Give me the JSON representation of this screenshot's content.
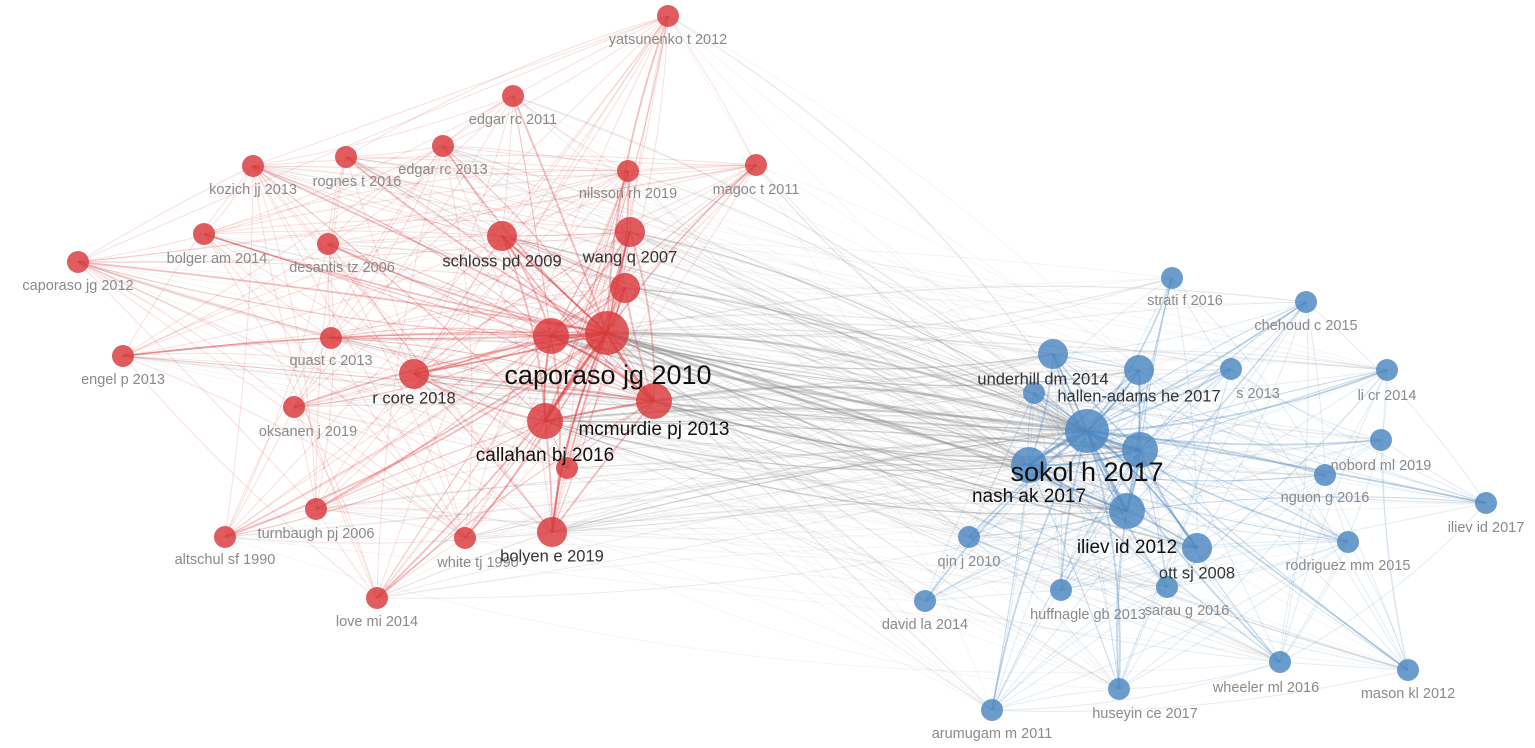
{
  "colors": {
    "red_cluster": "#d9383a",
    "blue_cluster": "#4a86c0",
    "cross_edge": "#8c8c8c",
    "label_minor": "#8a8a8a",
    "label_major": "#111111"
  },
  "nodes": [
    {
      "id": "yatsunenko",
      "label": "yatsunenko t 2012",
      "cluster": "red",
      "weight": 1
    },
    {
      "id": "edgar2011",
      "label": "edgar rc 2011",
      "cluster": "red",
      "weight": 1
    },
    {
      "id": "edgar2013",
      "label": "edgar rc 2013",
      "cluster": "red",
      "weight": 1
    },
    {
      "id": "kozich",
      "label": "kozich jj 2013",
      "cluster": "red",
      "weight": 1
    },
    {
      "id": "rognes",
      "label": "rognes t 2016",
      "cluster": "red",
      "weight": 1
    },
    {
      "id": "nilsson",
      "label": "nilsson rh 2019",
      "cluster": "red",
      "weight": 1
    },
    {
      "id": "magoc",
      "label": "magoc t 2011",
      "cluster": "red",
      "weight": 1
    },
    {
      "id": "bolger",
      "label": "bolger am 2014",
      "cluster": "red",
      "weight": 1
    },
    {
      "id": "desantis",
      "label": "desantis tz 2006",
      "cluster": "red",
      "weight": 1
    },
    {
      "id": "schloss",
      "label": "schloss pd 2009",
      "cluster": "red",
      "weight": 2
    },
    {
      "id": "wang",
      "label": "wang q 2007",
      "cluster": "red",
      "weight": 2
    },
    {
      "id": "caporaso2012",
      "label": "caporaso jg 2012",
      "cluster": "red",
      "weight": 1
    },
    {
      "id": "redhub",
      "label": "",
      "cluster": "red",
      "weight": 2
    },
    {
      "id": "caporaso2010",
      "label": "caporaso jg 2010",
      "cluster": "red",
      "weight": 4
    },
    {
      "id": "caporaso2010b",
      "label": "",
      "cluster": "red",
      "weight": 3
    },
    {
      "id": "quast",
      "label": "quast c 2013",
      "cluster": "red",
      "weight": 1
    },
    {
      "id": "engel",
      "label": "engel p 2013",
      "cluster": "red",
      "weight": 1
    },
    {
      "id": "rcore",
      "label": "r core 2018",
      "cluster": "red",
      "weight": 2
    },
    {
      "id": "mcmurdie",
      "label": "mcmurdie pj 2013",
      "cluster": "red",
      "weight": 3
    },
    {
      "id": "oksanen",
      "label": "oksanen j 2019",
      "cluster": "red",
      "weight": 1
    },
    {
      "id": "callahan",
      "label": "callahan bj 2016",
      "cluster": "red",
      "weight": 3
    },
    {
      "id": "redsmall",
      "label": "",
      "cluster": "red",
      "weight": 1
    },
    {
      "id": "turnbaugh",
      "label": "turnbaugh pj 2006",
      "cluster": "red",
      "weight": 1
    },
    {
      "id": "altschul",
      "label": "altschul sf 1990",
      "cluster": "red",
      "weight": 1
    },
    {
      "id": "white",
      "label": "white tj 1990",
      "cluster": "red",
      "weight": 1
    },
    {
      "id": "bolyen",
      "label": "bolyen e 2019",
      "cluster": "red",
      "weight": 2
    },
    {
      "id": "love",
      "label": "love mi 2014",
      "cluster": "red",
      "weight": 1
    },
    {
      "id": "strati",
      "label": "strati f 2016",
      "cluster": "blue",
      "weight": 1
    },
    {
      "id": "chehoud",
      "label": "chehoud c 2015",
      "cluster": "blue",
      "weight": 1
    },
    {
      "id": "underhill",
      "label": "underhill dm 2014",
      "cluster": "blue",
      "weight": 2
    },
    {
      "id": "hallen",
      "label": "hallen-adams he 2017",
      "cluster": "blue",
      "weight": 2
    },
    {
      "id": "bluex",
      "label": "",
      "cluster": "blue",
      "weight": 1
    },
    {
      "id": "bluey",
      "label": "s 2013",
      "cluster": "blue",
      "weight": 1
    },
    {
      "id": "lici",
      "label": "li cr 2014",
      "cluster": "blue",
      "weight": 1
    },
    {
      "id": "sokol",
      "label": "sokol h 2017",
      "cluster": "blue",
      "weight": 4
    },
    {
      "id": "sokolb",
      "label": "",
      "cluster": "blue",
      "weight": 3
    },
    {
      "id": "nobord",
      "label": "nobord ml 2019",
      "cluster": "blue",
      "weight": 1
    },
    {
      "id": "nash",
      "label": "nash ak 2017",
      "cluster": "blue",
      "weight": 3
    },
    {
      "id": "nguon",
      "label": "nguon g 2016",
      "cluster": "blue",
      "weight": 1
    },
    {
      "id": "iliev2017",
      "label": "iliev id 2017",
      "cluster": "blue",
      "weight": 1
    },
    {
      "id": "iliev2012",
      "label": "iliev id 2012",
      "cluster": "blue",
      "weight": 3
    },
    {
      "id": "qin",
      "label": "qin j 2010",
      "cluster": "blue",
      "weight": 1
    },
    {
      "id": "ott",
      "label": "ott sj 2008",
      "cluster": "blue",
      "weight": 2
    },
    {
      "id": "rodriguez",
      "label": "rodriguez mm 2015",
      "cluster": "blue",
      "weight": 1
    },
    {
      "id": "huffnagle",
      "label": "huffnagle gb 2013",
      "cluster": "blue",
      "weight": 1
    },
    {
      "id": "sarau",
      "label": "sarau g 2016",
      "cluster": "blue",
      "weight": 1
    },
    {
      "id": "david",
      "label": "david la 2014",
      "cluster": "blue",
      "weight": 1
    },
    {
      "id": "wheeler",
      "label": "wheeler ml 2016",
      "cluster": "blue",
      "weight": 1
    },
    {
      "id": "mason",
      "label": "mason kl 2012",
      "cluster": "blue",
      "weight": 1
    },
    {
      "id": "huseyin",
      "label": "huseyin ce 2017",
      "cluster": "blue",
      "weight": 1
    },
    {
      "id": "arumugam",
      "label": "arumugam m 2011",
      "cluster": "blue",
      "weight": 1
    }
  ]
}
